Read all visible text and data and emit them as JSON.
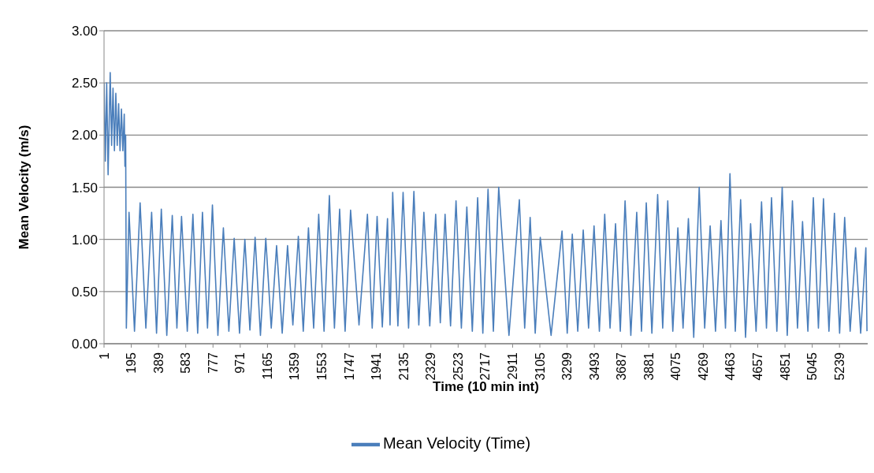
{
  "chart_data": {
    "type": "line",
    "xlabel": "Time (10 min int)",
    "ylabel": "Mean Velocity (m/s)",
    "xlim": [
      1,
      5440
    ],
    "xticks": [
      1,
      195,
      389,
      583,
      777,
      971,
      1165,
      1359,
      1553,
      1747,
      1941,
      2135,
      2329,
      2523,
      2717,
      2911,
      3105,
      3299,
      3493,
      3687,
      3881,
      4075,
      4269,
      4463,
      4657,
      4851,
      5045,
      5239
    ],
    "ylim": [
      0,
      3
    ],
    "yticks": [
      {
        "value": 0,
        "label": "0.00"
      },
      {
        "value": 0.5,
        "label": "0.50"
      },
      {
        "value": 1,
        "label": "1.00"
      },
      {
        "value": 1.5,
        "label": "1.50"
      },
      {
        "value": 2,
        "label": "2.00"
      },
      {
        "value": 2.5,
        "label": "2.50"
      },
      {
        "value": 3,
        "label": "3.00"
      }
    ],
    "grid": "y",
    "legend": "bottom",
    "marker": "none",
    "line_style": "solid",
    "series": [
      {
        "name": "Mean Velocity (Time)",
        "color": "#4a7ebb",
        "x": [
          1,
          10,
          20,
          30,
          45,
          55,
          65,
          75,
          85,
          95,
          105,
          115,
          125,
          135,
          145,
          150,
          155,
          160,
          179,
          218,
          258,
          299,
          340,
          375,
          409,
          448,
          487,
          520,
          553,
          594,
          634,
          668,
          702,
          738,
          773,
          812,
          851,
          890,
          928,
          966,
          1004,
          1040,
          1077,
          1115,
          1153,
          1192,
          1230,
          1270,
          1308,
          1346,
          1385,
          1420,
          1457,
          1494,
          1530,
          1568,
          1606,
          1642,
          1679,
          1718,
          1757,
          1817,
          1877,
          1911,
          1946,
          1983,
          2020,
          2038,
          2057,
          2094,
          2131,
          2170,
          2208,
          2243,
          2279,
          2321,
          2363,
          2396,
          2430,
          2469,
          2508,
          2546,
          2585,
          2624,
          2662,
          2699,
          2736,
          2774,
          2812,
          2885,
          2959,
          2997,
          3036,
          3072,
          3108,
          3185,
          3263,
          3300,
          3336,
          3375,
          3414,
          3452,
          3491,
          3529,
          3567,
          3605,
          3644,
          3678,
          3712,
          3753,
          3795,
          3829,
          3863,
          3903,
          3944,
          3980,
          4016,
          4052,
          4088,
          4125,
          4163,
          4201,
          4240,
          4279,
          4318,
          4356,
          4395,
          4427,
          4459,
          4497,
          4535,
          4570,
          4606,
          4645,
          4684,
          4719,
          4755,
          4793,
          4831,
          4867,
          4904,
          4940,
          4976,
          5014,
          5053,
          5089,
          5125,
          5164,
          5203,
          5240,
          5276,
          5315,
          5354,
          5390,
          5427,
          5435
        ],
        "values": [
          2.5,
          1.75,
          2.5,
          1.62,
          2.6,
          1.9,
          2.45,
          1.85,
          2.4,
          1.9,
          2.3,
          1.85,
          2.25,
          1.85,
          2.2,
          1.7,
          2.0,
          0.15,
          1.26,
          0.12,
          1.35,
          0.15,
          1.26,
          0.1,
          1.29,
          0.08,
          1.23,
          0.15,
          1.22,
          0.12,
          1.24,
          0.1,
          1.26,
          0.15,
          1.33,
          0.08,
          1.11,
          0.12,
          1.01,
          0.1,
          1.0,
          0.13,
          1.02,
          0.08,
          1.01,
          0.15,
          0.94,
          0.1,
          0.94,
          0.18,
          1.03,
          0.12,
          1.11,
          0.15,
          1.24,
          0.12,
          1.42,
          0.15,
          1.29,
          0.12,
          1.28,
          0.18,
          1.24,
          0.15,
          1.22,
          0.16,
          1.2,
          0.18,
          1.45,
          0.17,
          1.45,
          0.15,
          1.46,
          0.18,
          1.26,
          0.17,
          1.24,
          0.2,
          1.24,
          0.17,
          1.37,
          0.15,
          1.31,
          0.12,
          1.4,
          0.1,
          1.48,
          0.12,
          1.5,
          0.08,
          1.38,
          0.15,
          1.21,
          0.1,
          1.02,
          0.08,
          1.08,
          0.1,
          1.05,
          0.12,
          1.09,
          0.15,
          1.13,
          0.12,
          1.24,
          0.15,
          1.15,
          0.12,
          1.37,
          0.08,
          1.26,
          0.12,
          1.35,
          0.1,
          1.43,
          0.15,
          1.37,
          0.12,
          1.11,
          0.15,
          1.2,
          0.06,
          1.5,
          0.15,
          1.13,
          0.12,
          1.18,
          0.15,
          1.63,
          0.12,
          1.38,
          0.06,
          1.15,
          0.12,
          1.36,
          0.15,
          1.4,
          0.12,
          1.5,
          0.08,
          1.37,
          0.15,
          1.17,
          0.12,
          1.4,
          0.15,
          1.39,
          0.12,
          1.25,
          0.1,
          1.21,
          0.12,
          0.92,
          0.1,
          0.92,
          0.12
        ]
      }
    ]
  }
}
